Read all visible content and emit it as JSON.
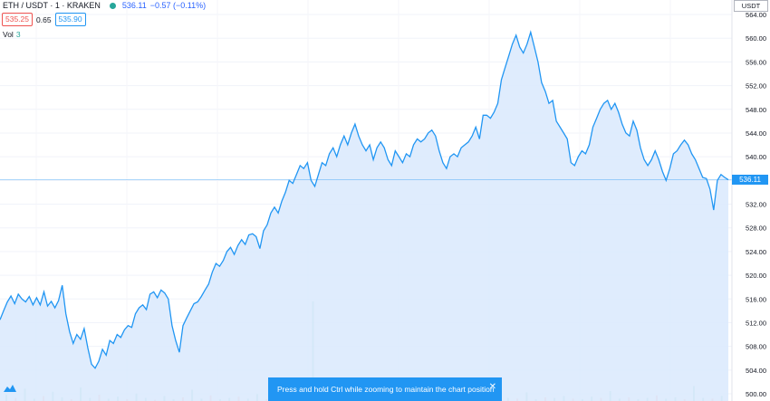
{
  "header": {
    "symbol": "ETH / USDT · 1 · KRAKEN",
    "price": "536.11",
    "change": "−0.57 (−0.11%)",
    "bid": "535.25",
    "spread": "0.65",
    "ask": "535.90",
    "vol_label": "Vol",
    "vol_value": "3"
  },
  "axis": {
    "unit": "USDT",
    "last_price": "536.11"
  },
  "toast": {
    "message": "Press and hold Ctrl while zooming to maintain the chart position",
    "close_icon": "close-icon"
  },
  "colors": {
    "line": "#2196f3",
    "area": "#dbeafd",
    "up": "#26a69a",
    "down": "#ef5350"
  },
  "chart_data": {
    "type": "area",
    "title": "",
    "xlabel": "",
    "ylabel": "USDT",
    "ylim": [
      500,
      566
    ],
    "y_ticks": [
      500,
      504,
      508,
      512,
      516,
      520,
      524,
      528,
      532,
      536,
      540,
      544,
      548,
      552,
      556,
      560,
      564
    ],
    "last_value": 536.11,
    "series": [
      {
        "values": [
          512.5,
          514,
          515.5,
          516.5,
          515.2,
          516.8,
          516,
          515.5,
          516.4,
          515,
          516.2,
          515,
          517.2,
          514.8,
          515.6,
          514.5,
          515.7,
          518.3,
          513.5,
          510.5,
          508.5,
          510,
          509.2,
          511,
          507.7,
          505,
          504.3,
          505.5,
          507.5,
          506.5,
          509,
          508.5,
          510,
          509.5,
          510.8,
          511.5,
          511.2,
          513.5,
          514.5,
          515,
          514.2,
          516.8,
          517.2,
          516.2,
          517.5,
          517,
          516,
          511.5,
          509,
          507,
          511.5,
          512.8,
          514,
          515.2,
          515.5,
          516.4,
          517.5,
          518.5,
          520.5,
          522,
          521.5,
          522.5,
          524,
          524.7,
          523.5,
          525,
          526,
          525.2,
          526.8,
          527,
          526.5,
          524.5,
          527.5,
          528.5,
          530.5,
          531.5,
          530.5,
          532.5,
          534,
          536,
          535.5,
          537,
          538.5,
          538,
          539,
          536,
          535,
          537,
          539,
          538.5,
          540.5,
          541.5,
          540,
          542,
          543.5,
          542,
          544,
          545.5,
          543.5,
          542,
          541,
          542,
          539.5,
          541.5,
          542.5,
          541.5,
          539.5,
          538.5,
          541,
          540,
          539,
          540.5,
          540,
          542,
          543,
          542.5,
          543,
          544,
          544.5,
          543.5,
          541,
          539,
          538,
          540,
          540.5,
          540,
          541.5,
          542,
          542.5,
          543.5,
          545,
          543,
          547,
          547,
          546.5,
          547.5,
          549,
          553,
          555,
          557,
          559,
          560.5,
          558.5,
          557.5,
          559,
          561,
          558.5,
          556,
          552.5,
          551,
          549,
          549.5,
          546,
          545,
          544,
          543,
          539,
          538.5,
          540,
          541,
          540.5,
          542,
          545,
          546.5,
          548,
          549,
          549.5,
          548,
          549,
          547.5,
          545.5,
          544,
          543.5,
          546,
          544.5,
          541.5,
          539.5,
          538.5,
          539.5,
          541,
          539.5,
          537.5,
          536,
          538,
          540.5,
          541,
          542,
          542.8,
          542,
          540.5,
          539.5,
          538,
          536.5,
          536.3,
          534.5,
          531,
          536,
          537,
          536.5,
          536.11
        ]
      }
    ],
    "volume": [
      1,
      0.5,
      2,
      0.4,
      0.8,
      1.5,
      0.6,
      0.3,
      2.2,
      0.5,
      1,
      0.4,
      0.7,
      0.3,
      1.2,
      0.5,
      0.2,
      0.8,
      0.3,
      0.6,
      1.8,
      0.4,
      0.9,
      0.3,
      0.5,
      0.7,
      0.4,
      1.1,
      0.3,
      0.6,
      0.8,
      0.4,
      0.5,
      16,
      0.6,
      0.4,
      0.9,
      0.3,
      0.5,
      0.7,
      0.4,
      2.5,
      0.6,
      0.3,
      0.8,
      0.5,
      0.4,
      0.7,
      3.2,
      0.5,
      0.4,
      0.6,
      0.3,
      0.9,
      0.5,
      0.4,
      1.4,
      0.3,
      0.6,
      0.5,
      0.8,
      0.4,
      0.3,
      0.7,
      0.5,
      1.6,
      0.4,
      0.6,
      0.3,
      0.5,
      0.9,
      0.4,
      0.6,
      0.3,
      2.4,
      0.5,
      0.4,
      0.8
    ]
  }
}
